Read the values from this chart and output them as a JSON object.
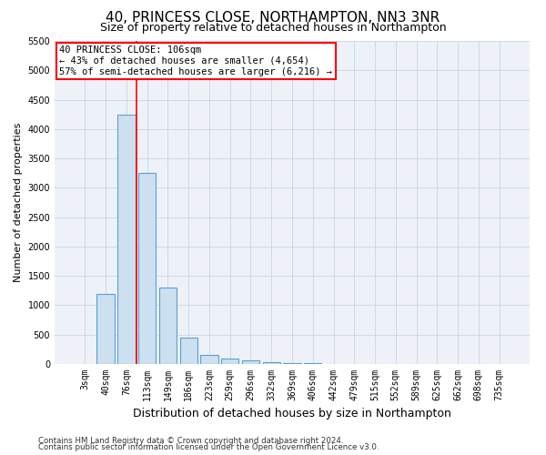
{
  "title": "40, PRINCESS CLOSE, NORTHAMPTON, NN3 3NR",
  "subtitle": "Size of property relative to detached houses in Northampton",
  "xlabel": "Distribution of detached houses by size in Northampton",
  "ylabel": "Number of detached properties",
  "categories": [
    "3sqm",
    "40sqm",
    "76sqm",
    "113sqm",
    "149sqm",
    "186sqm",
    "223sqm",
    "259sqm",
    "296sqm",
    "332sqm",
    "369sqm",
    "406sqm",
    "442sqm",
    "479sqm",
    "515sqm",
    "552sqm",
    "589sqm",
    "625sqm",
    "662sqm",
    "698sqm",
    "735sqm"
  ],
  "values": [
    0,
    1200,
    4250,
    3250,
    1300,
    450,
    150,
    100,
    55,
    30,
    15,
    10,
    5,
    3,
    2,
    1,
    1,
    0,
    0,
    0,
    0
  ],
  "bar_color": "#cce0f0",
  "bar_edge_color": "#5a9fd4",
  "ylim": [
    0,
    5500
  ],
  "yticks": [
    0,
    500,
    1000,
    1500,
    2000,
    2500,
    3000,
    3500,
    4000,
    4500,
    5000,
    5500
  ],
  "red_line_x": 2.5,
  "annotation_line1": "40 PRINCESS CLOSE: 106sqm",
  "annotation_line2": "← 43% of detached houses are smaller (4,654)",
  "annotation_line3": "57% of semi-detached houses are larger (6,216) →",
  "footer1": "Contains HM Land Registry data © Crown copyright and database right 2024.",
  "footer2": "Contains public sector information licensed under the Open Government Licence v3.0.",
  "title_fontsize": 11,
  "subtitle_fontsize": 9,
  "annot_fontsize": 7.5,
  "tick_fontsize": 7,
  "ylabel_fontsize": 8,
  "xlabel_fontsize": 9,
  "bg_color": "#eef2f8"
}
